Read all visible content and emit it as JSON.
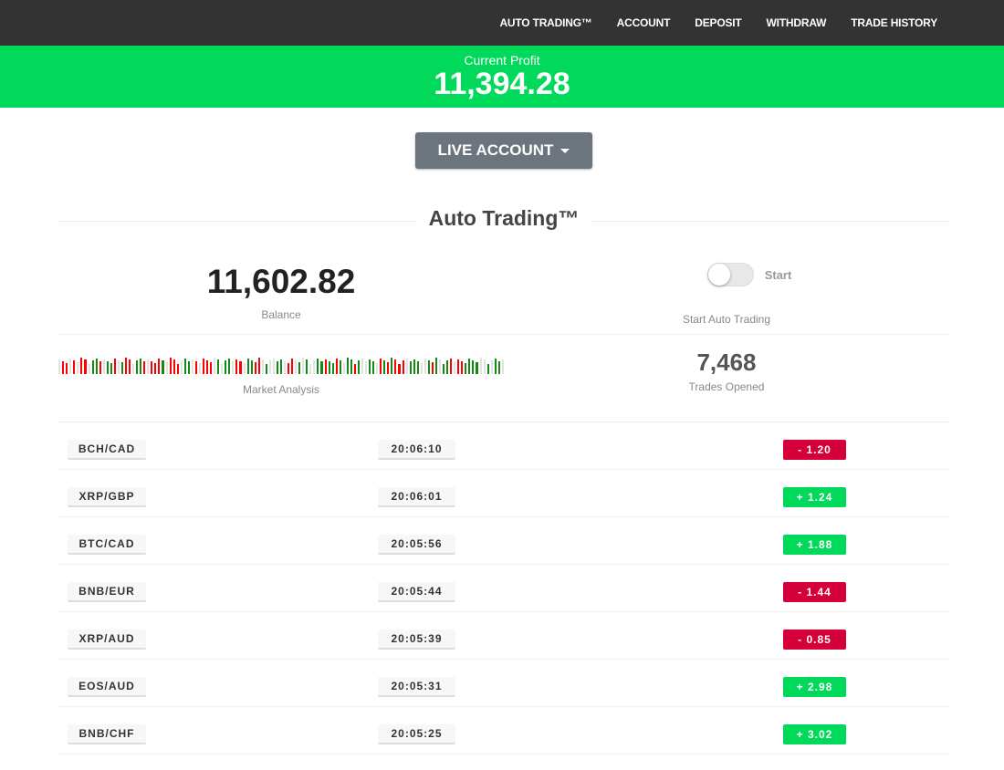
{
  "nav": [
    "AUTO TRADING™",
    "ACCOUNT",
    "DEPOSIT",
    "WITHDRAW",
    "TRADE HISTORY"
  ],
  "profit": {
    "label": "Current Profit",
    "value": "11,394.28"
  },
  "account_button": "LIVE ACCOUNT",
  "section_title": "Auto Trading™",
  "balance": {
    "value": "11,602.82",
    "label": "Balance"
  },
  "toggle": {
    "label": "Start",
    "caption": "Start Auto Trading",
    "on": false
  },
  "market": {
    "label": "Market Analysis",
    "bars": "nrrnrnrrnggrnggrngrrnggrnrrrgnrrrnggnrnrrrngnggnrrnggrrngnnggnrrngngnnggrggrgnggrgnnggnrgrgrrrngggnngrgnggrnrrggggnngnggn"
  },
  "trades": {
    "value": "7,468",
    "label": "Trades Opened"
  },
  "colors": {
    "up": "#00d95a",
    "down": "#d5003a",
    "bar_up": "#138a13",
    "bar_down": "#ff0000",
    "bar_neutral": "#e2e2e2"
  },
  "rows": [
    {
      "pair": "BCH/CAD",
      "time": "20:06:10",
      "change": "- 1.20",
      "dir": "down"
    },
    {
      "pair": "XRP/GBP",
      "time": "20:06:01",
      "change": "+ 1.24",
      "dir": "up"
    },
    {
      "pair": "BTC/CAD",
      "time": "20:05:56",
      "change": "+ 1.88",
      "dir": "up"
    },
    {
      "pair": "BNB/EUR",
      "time": "20:05:44",
      "change": "- 1.44",
      "dir": "down"
    },
    {
      "pair": "XRP/AUD",
      "time": "20:05:39",
      "change": "- 0.85",
      "dir": "down"
    },
    {
      "pair": "EOS/AUD",
      "time": "20:05:31",
      "change": "+ 2.98",
      "dir": "up"
    },
    {
      "pair": "BNB/CHF",
      "time": "20:05:25",
      "change": "+ 3.02",
      "dir": "up"
    }
  ]
}
